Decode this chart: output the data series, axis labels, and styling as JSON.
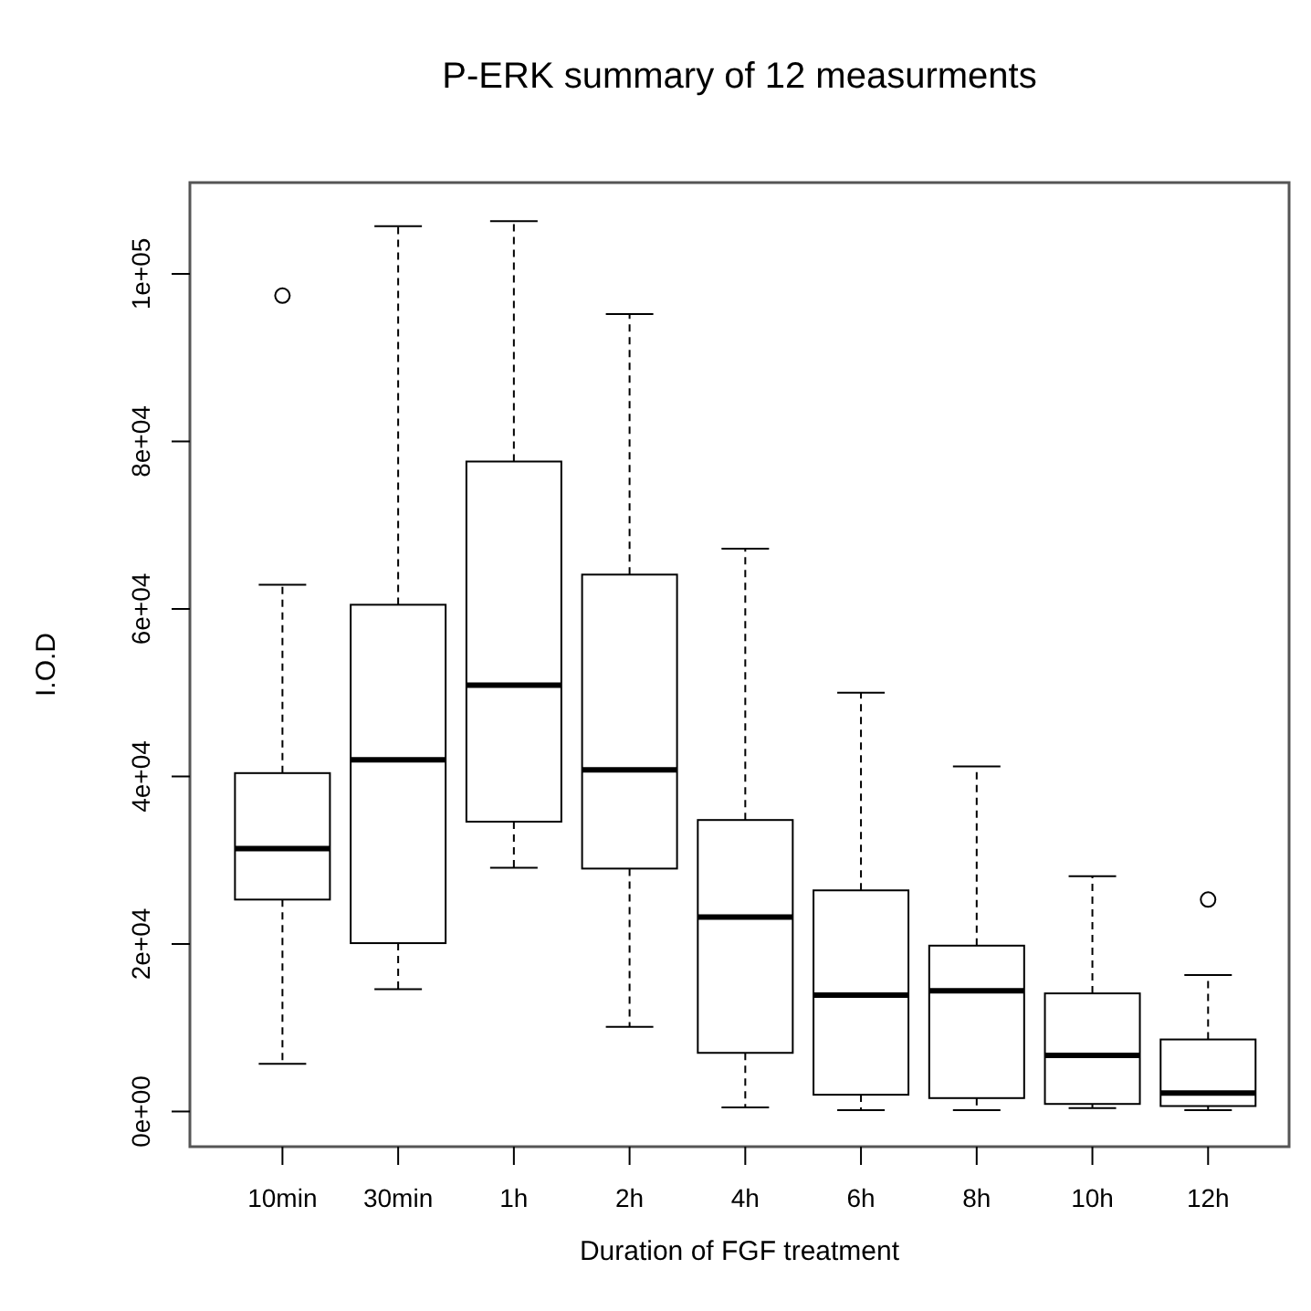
{
  "chart_data": {
    "type": "box",
    "title": "P-ERK summary of 12 measurments",
    "xlabel": "Duration of FGF treatment",
    "ylabel": "I.O.D",
    "categories": [
      "10min",
      "30min",
      "1h",
      "2h",
      "4h",
      "6h",
      "8h",
      "10h",
      "12h"
    ],
    "boxes": [
      {
        "low": 5700,
        "q1": 25300,
        "median": 31400,
        "q3": 40400,
        "high": 62900,
        "outliers": [
          97400
        ]
      },
      {
        "low": 14600,
        "q1": 20100,
        "median": 42000,
        "q3": 60500,
        "high": 105700
      },
      {
        "low": 29100,
        "q1": 34600,
        "median": 50900,
        "q3": 77600,
        "high": 106300
      },
      {
        "low": 10100,
        "q1": 29000,
        "median": 40800,
        "q3": 64100,
        "high": 95200
      },
      {
        "low": 500,
        "q1": 7000,
        "median": 23200,
        "q3": 34800,
        "high": 67200
      },
      {
        "low": 150,
        "q1": 2000,
        "median": 13900,
        "q3": 26400,
        "high": 50000
      },
      {
        "low": 150,
        "q1": 1600,
        "median": 14400,
        "q3": 19800,
        "high": 41200
      },
      {
        "low": 400,
        "q1": 900,
        "median": 6700,
        "q3": 14100,
        "high": 28100
      },
      {
        "low": 150,
        "q1": 650,
        "median": 2200,
        "q3": 8600,
        "high": 16300,
        "outliers": [
          25300
        ]
      }
    ],
    "color": "#000000",
    "ylim": [
      -4200,
      110900
    ],
    "yticks": [
      {
        "value": 0,
        "label": "0e+00"
      },
      {
        "value": 20000,
        "label": "2e+04"
      },
      {
        "value": 40000,
        "label": "4e+04"
      },
      {
        "value": 60000,
        "label": "6e+04"
      },
      {
        "value": 80000,
        "label": "8e+04"
      },
      {
        "value": 100000,
        "label": "1e+05"
      }
    ],
    "grid": false
  }
}
